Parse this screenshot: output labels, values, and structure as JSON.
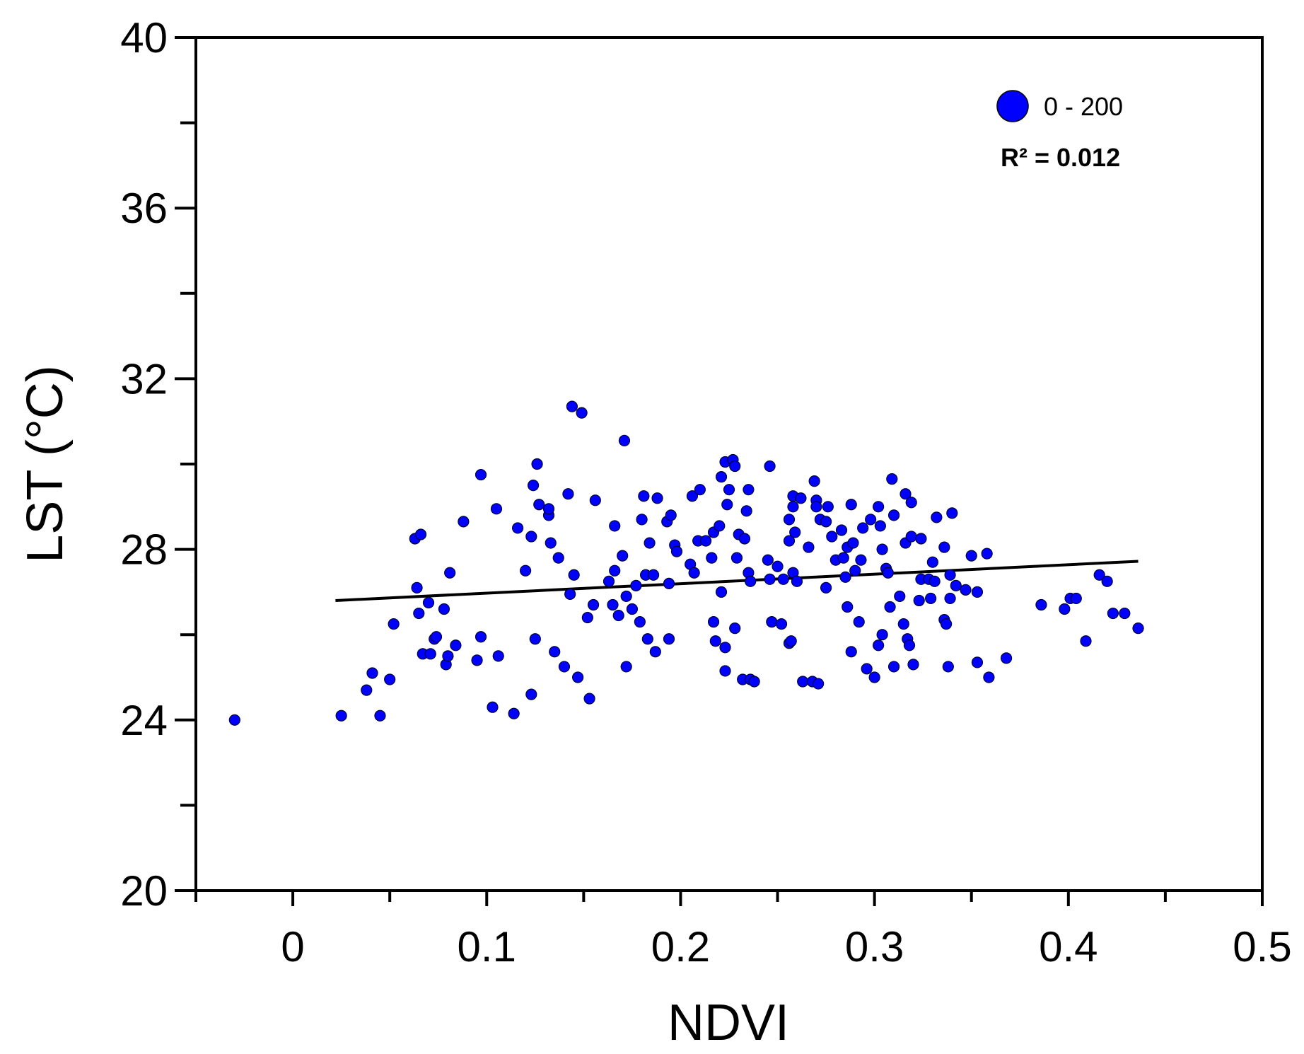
{
  "chart_data": {
    "type": "scatter",
    "xlabel": "NDVI",
    "ylabel": "LST (°C)",
    "xlim": [
      -0.05,
      0.5
    ],
    "ylim": [
      20,
      40
    ],
    "xticks": [
      0,
      0.1,
      0.2,
      0.3,
      0.4,
      0.5
    ],
    "xtick_labels": [
      "0",
      "0.1",
      "0.2",
      "0.3",
      "0.4",
      "0.5"
    ],
    "yticks": [
      20,
      24,
      28,
      32,
      36,
      40
    ],
    "ytick_labels": [
      "20",
      "24",
      "28",
      "32",
      "36",
      "40"
    ],
    "legend": {
      "label": "0 - 200",
      "position": "top-right"
    },
    "r2_label": "R² = 0.012",
    "point_color": "#0000ff",
    "trendline": {
      "x": [
        0.022,
        0.436
      ],
      "y": [
        26.8,
        27.72
      ]
    },
    "series": [
      {
        "name": "0 - 200",
        "points": [
          [
            -0.03,
            24.0
          ],
          [
            0.025,
            24.1
          ],
          [
            0.038,
            24.7
          ],
          [
            0.041,
            25.1
          ],
          [
            0.045,
            24.1
          ],
          [
            0.05,
            24.95
          ],
          [
            0.052,
            26.25
          ],
          [
            0.063,
            28.25
          ],
          [
            0.064,
            27.1
          ],
          [
            0.065,
            26.5
          ],
          [
            0.066,
            28.35
          ],
          [
            0.067,
            25.55
          ],
          [
            0.07,
            26.75
          ],
          [
            0.071,
            25.55
          ],
          [
            0.073,
            25.9
          ],
          [
            0.074,
            25.95
          ],
          [
            0.078,
            26.6
          ],
          [
            0.079,
            25.3
          ],
          [
            0.08,
            25.5
          ],
          [
            0.081,
            27.45
          ],
          [
            0.084,
            25.75
          ],
          [
            0.088,
            28.65
          ],
          [
            0.095,
            25.4
          ],
          [
            0.097,
            29.75
          ],
          [
            0.097,
            25.95
          ],
          [
            0.103,
            24.3
          ],
          [
            0.105,
            28.95
          ],
          [
            0.106,
            25.5
          ],
          [
            0.114,
            24.15
          ],
          [
            0.116,
            28.5
          ],
          [
            0.12,
            27.5
          ],
          [
            0.123,
            28.3
          ],
          [
            0.123,
            24.6
          ],
          [
            0.124,
            29.5
          ],
          [
            0.125,
            25.9
          ],
          [
            0.126,
            30.0
          ],
          [
            0.127,
            29.05
          ],
          [
            0.132,
            28.8
          ],
          [
            0.132,
            28.95
          ],
          [
            0.133,
            28.15
          ],
          [
            0.135,
            25.6
          ],
          [
            0.137,
            27.8
          ],
          [
            0.14,
            25.25
          ],
          [
            0.142,
            29.3
          ],
          [
            0.143,
            26.95
          ],
          [
            0.144,
            31.35
          ],
          [
            0.145,
            27.4
          ],
          [
            0.147,
            25.0
          ],
          [
            0.149,
            31.2
          ],
          [
            0.152,
            26.4
          ],
          [
            0.153,
            24.5
          ],
          [
            0.155,
            26.7
          ],
          [
            0.156,
            29.15
          ],
          [
            0.163,
            27.25
          ],
          [
            0.165,
            26.7
          ],
          [
            0.166,
            27.5
          ],
          [
            0.166,
            28.55
          ],
          [
            0.168,
            26.45
          ],
          [
            0.17,
            27.85
          ],
          [
            0.171,
            30.55
          ],
          [
            0.172,
            25.25
          ],
          [
            0.172,
            26.9
          ],
          [
            0.175,
            26.6
          ],
          [
            0.177,
            27.15
          ],
          [
            0.179,
            26.3
          ],
          [
            0.18,
            28.7
          ],
          [
            0.181,
            29.25
          ],
          [
            0.182,
            27.4
          ],
          [
            0.183,
            25.9
          ],
          [
            0.184,
            28.15
          ],
          [
            0.186,
            27.4
          ],
          [
            0.187,
            25.6
          ],
          [
            0.188,
            29.2
          ],
          [
            0.193,
            28.65
          ],
          [
            0.194,
            27.2
          ],
          [
            0.194,
            25.9
          ],
          [
            0.195,
            28.8
          ],
          [
            0.197,
            28.1
          ],
          [
            0.198,
            27.95
          ],
          [
            0.205,
            27.65
          ],
          [
            0.206,
            29.25
          ],
          [
            0.207,
            27.45
          ],
          [
            0.209,
            28.2
          ],
          [
            0.21,
            29.4
          ],
          [
            0.213,
            28.2
          ],
          [
            0.216,
            27.8
          ],
          [
            0.217,
            28.4
          ],
          [
            0.217,
            26.3
          ],
          [
            0.218,
            25.85
          ],
          [
            0.22,
            28.55
          ],
          [
            0.221,
            29.7
          ],
          [
            0.221,
            27.0
          ],
          [
            0.223,
            30.05
          ],
          [
            0.223,
            25.15
          ],
          [
            0.223,
            25.7
          ],
          [
            0.224,
            29.05
          ],
          [
            0.225,
            29.4
          ],
          [
            0.227,
            30.1
          ],
          [
            0.228,
            29.95
          ],
          [
            0.228,
            26.15
          ],
          [
            0.229,
            27.8
          ],
          [
            0.23,
            28.35
          ],
          [
            0.232,
            24.95
          ],
          [
            0.233,
            28.25
          ],
          [
            0.234,
            28.9
          ],
          [
            0.235,
            29.4
          ],
          [
            0.235,
            27.45
          ],
          [
            0.236,
            27.25
          ],
          [
            0.236,
            24.95
          ],
          [
            0.238,
            24.9
          ],
          [
            0.245,
            27.75
          ],
          [
            0.246,
            29.95
          ],
          [
            0.246,
            27.3
          ],
          [
            0.247,
            26.3
          ],
          [
            0.25,
            27.6
          ],
          [
            0.252,
            26.25
          ],
          [
            0.253,
            27.3
          ],
          [
            0.256,
            28.7
          ],
          [
            0.256,
            28.2
          ],
          [
            0.256,
            25.8
          ],
          [
            0.257,
            25.85
          ],
          [
            0.258,
            27.45
          ],
          [
            0.258,
            29.25
          ],
          [
            0.258,
            29.0
          ],
          [
            0.259,
            28.4
          ],
          [
            0.26,
            27.25
          ],
          [
            0.262,
            29.2
          ],
          [
            0.263,
            24.9
          ],
          [
            0.266,
            28.05
          ],
          [
            0.268,
            24.9
          ],
          [
            0.269,
            29.6
          ],
          [
            0.27,
            29.15
          ],
          [
            0.27,
            29.0
          ],
          [
            0.271,
            24.85
          ],
          [
            0.272,
            28.7
          ],
          [
            0.275,
            28.65
          ],
          [
            0.275,
            27.1
          ],
          [
            0.276,
            29.0
          ],
          [
            0.278,
            28.3
          ],
          [
            0.28,
            27.75
          ],
          [
            0.283,
            28.45
          ],
          [
            0.284,
            27.8
          ],
          [
            0.285,
            27.35
          ],
          [
            0.286,
            28.05
          ],
          [
            0.286,
            26.65
          ],
          [
            0.288,
            29.05
          ],
          [
            0.288,
            25.6
          ],
          [
            0.289,
            28.15
          ],
          [
            0.29,
            27.5
          ],
          [
            0.292,
            26.3
          ],
          [
            0.293,
            27.75
          ],
          [
            0.294,
            28.5
          ],
          [
            0.296,
            25.2
          ],
          [
            0.298,
            28.7
          ],
          [
            0.3,
            25.0
          ],
          [
            0.302,
            29.0
          ],
          [
            0.302,
            25.75
          ],
          [
            0.303,
            28.55
          ],
          [
            0.304,
            28.0
          ],
          [
            0.304,
            26.0
          ],
          [
            0.306,
            27.55
          ],
          [
            0.307,
            27.45
          ],
          [
            0.308,
            26.65
          ],
          [
            0.309,
            29.65
          ],
          [
            0.31,
            28.8
          ],
          [
            0.31,
            25.25
          ],
          [
            0.313,
            26.9
          ],
          [
            0.315,
            26.25
          ],
          [
            0.316,
            29.3
          ],
          [
            0.316,
            28.15
          ],
          [
            0.317,
            25.9
          ],
          [
            0.318,
            25.75
          ],
          [
            0.319,
            28.3
          ],
          [
            0.319,
            29.1
          ],
          [
            0.32,
            25.3
          ],
          [
            0.323,
            26.8
          ],
          [
            0.324,
            28.25
          ],
          [
            0.324,
            27.3
          ],
          [
            0.328,
            27.3
          ],
          [
            0.329,
            26.85
          ],
          [
            0.33,
            27.7
          ],
          [
            0.331,
            27.25
          ],
          [
            0.332,
            28.75
          ],
          [
            0.336,
            28.05
          ],
          [
            0.336,
            26.35
          ],
          [
            0.337,
            26.25
          ],
          [
            0.338,
            25.25
          ],
          [
            0.339,
            27.4
          ],
          [
            0.339,
            26.85
          ],
          [
            0.34,
            28.85
          ],
          [
            0.342,
            27.15
          ],
          [
            0.347,
            27.05
          ],
          [
            0.35,
            27.85
          ],
          [
            0.353,
            25.35
          ],
          [
            0.353,
            27.0
          ],
          [
            0.358,
            27.9
          ],
          [
            0.359,
            25.0
          ],
          [
            0.368,
            25.45
          ],
          [
            0.386,
            26.7
          ],
          [
            0.398,
            26.6
          ],
          [
            0.401,
            26.85
          ],
          [
            0.404,
            26.85
          ],
          [
            0.409,
            25.85
          ],
          [
            0.416,
            27.4
          ],
          [
            0.42,
            27.25
          ],
          [
            0.423,
            26.5
          ],
          [
            0.429,
            26.5
          ],
          [
            0.436,
            26.15
          ]
        ]
      }
    ]
  }
}
